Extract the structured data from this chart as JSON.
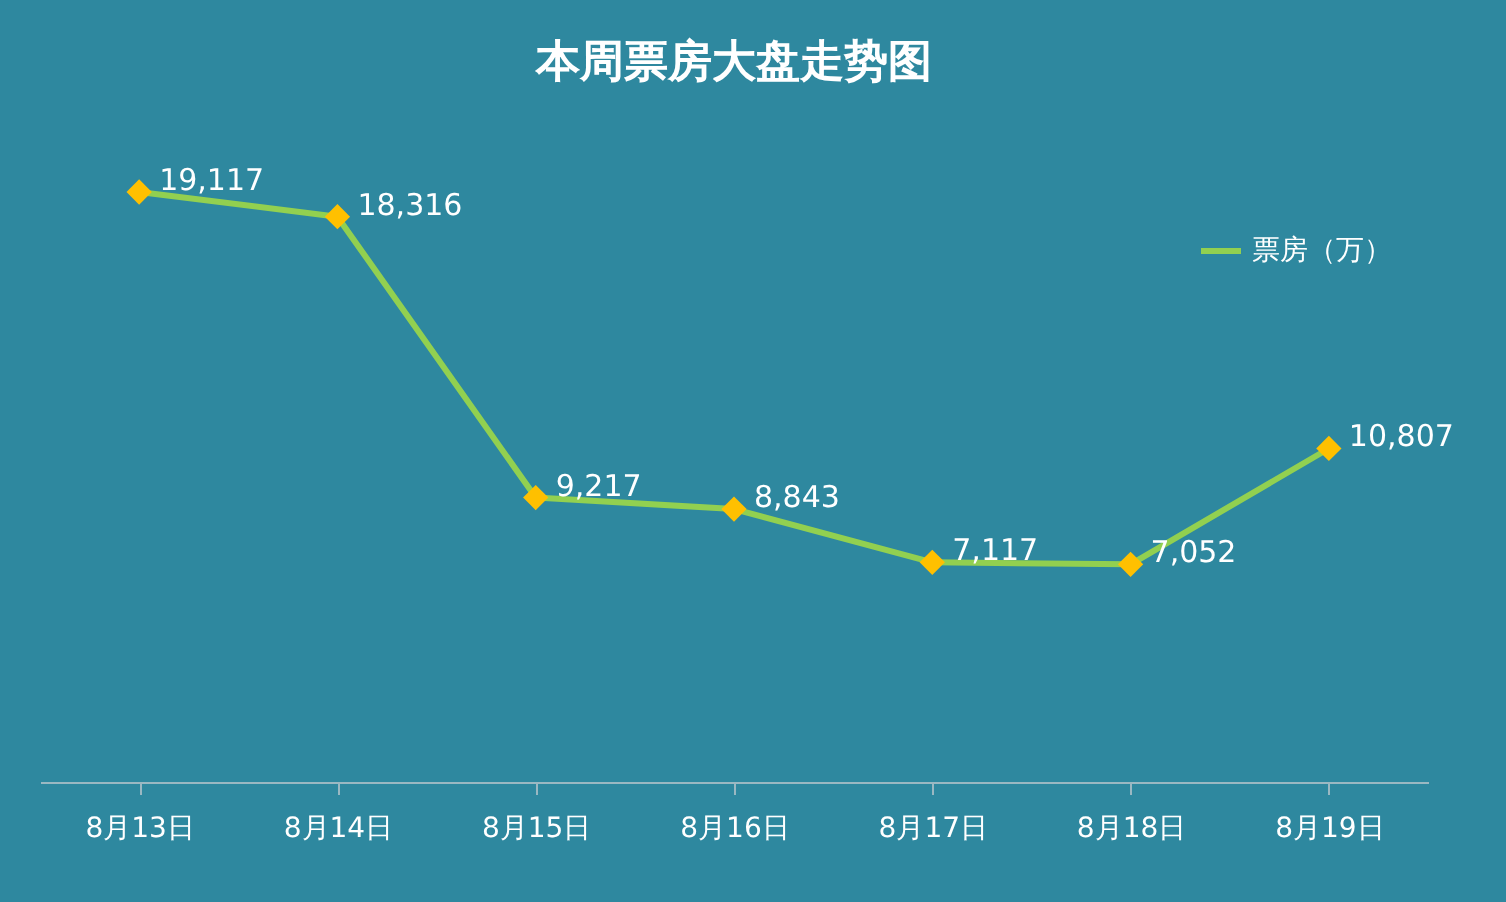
{
  "chart_data": {
    "type": "line",
    "title": "本周票房大盘走势图",
    "categories": [
      "8月13日",
      "8月14日",
      "8月15日",
      "8月16日",
      "8月17日",
      "8月18日",
      "8月19日"
    ],
    "series": [
      {
        "name": "票房（万）",
        "color": "#92d050",
        "values": [
          19117,
          18316,
          9217,
          8843,
          7117,
          7052,
          10807
        ],
        "value_labels": [
          "19,117",
          "18,316",
          "9,217",
          "8,843",
          "7,117",
          "7,052",
          "10,807"
        ]
      }
    ],
    "marker": "diamond",
    "legend": "top right",
    "grid": false
  }
}
